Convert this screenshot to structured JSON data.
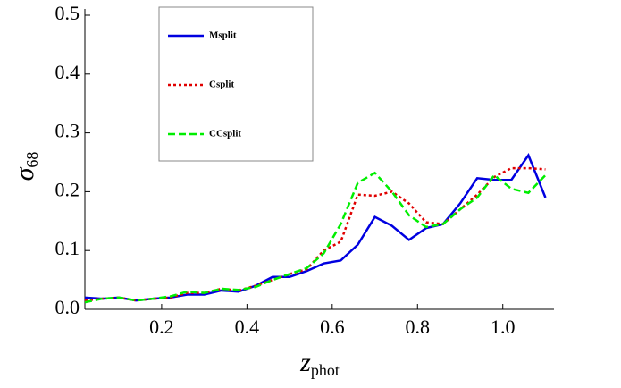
{
  "chart_data": {
    "type": "line",
    "ylabel": "σ",
    "ylabel_subscript": "68",
    "xlabel": "z",
    "xlabel_subscript": "phot",
    "x": [
      0.02,
      0.06,
      0.1,
      0.14,
      0.18,
      0.22,
      0.26,
      0.3,
      0.34,
      0.38,
      0.42,
      0.46,
      0.5,
      0.54,
      0.58,
      0.62,
      0.66,
      0.7,
      0.74,
      0.78,
      0.82,
      0.86,
      0.9,
      0.94,
      0.98,
      1.02,
      1.06,
      1.1
    ],
    "series": [
      {
        "name": "Msplit",
        "color": "#0000e0",
        "style": "solid",
        "values": [
          0.02,
          0.018,
          0.02,
          0.015,
          0.018,
          0.02,
          0.025,
          0.025,
          0.032,
          0.03,
          0.04,
          0.055,
          0.055,
          0.065,
          0.078,
          0.083,
          0.11,
          0.157,
          0.142,
          0.118,
          0.138,
          0.145,
          0.18,
          0.223,
          0.22,
          0.22,
          0.262,
          0.19
        ]
      },
      {
        "name": "Csplit",
        "color": "#e00000",
        "style": "dotted",
        "values": [
          0.015,
          0.018,
          0.02,
          0.015,
          0.018,
          0.02,
          0.028,
          0.028,
          0.035,
          0.032,
          0.04,
          0.05,
          0.06,
          0.068,
          0.1,
          0.115,
          0.195,
          0.193,
          0.2,
          0.18,
          0.148,
          0.145,
          0.17,
          0.195,
          0.225,
          0.24,
          0.24,
          0.238
        ]
      },
      {
        "name": "CCsplit",
        "color": "#00ee00",
        "style": "dashed",
        "values": [
          0.012,
          0.018,
          0.02,
          0.015,
          0.018,
          0.022,
          0.03,
          0.028,
          0.035,
          0.033,
          0.038,
          0.05,
          0.06,
          0.07,
          0.095,
          0.145,
          0.215,
          0.232,
          0.2,
          0.16,
          0.14,
          0.145,
          0.17,
          0.19,
          0.228,
          0.205,
          0.198,
          0.228
        ]
      }
    ],
    "xlim": [
      0.02,
      1.12
    ],
    "ylim": [
      0,
      0.5
    ],
    "xticks": [
      0.2,
      0.4,
      0.6,
      {
        "value": 0.8,
        "label": "0.8"
      },
      {
        "value": 1.0,
        "label": "1.0"
      }
    ],
    "yticks": [
      {
        "value": 0,
        "label": "0.0"
      },
      0.1,
      0.2,
      0.3,
      0.4,
      0.5
    ],
    "legend": "upper-left"
  }
}
